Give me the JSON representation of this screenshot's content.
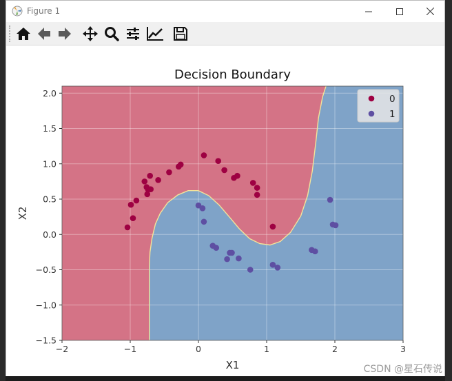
{
  "window": {
    "title": "Figure 1",
    "controls": [
      "minimize",
      "maximize",
      "close"
    ]
  },
  "toolbar": {
    "tools": [
      {
        "name": "home-icon",
        "label": "Home"
      },
      {
        "name": "back-arrow-icon",
        "label": "Back"
      },
      {
        "name": "forward-arrow-icon",
        "label": "Forward"
      },
      {
        "name": "pan-icon",
        "label": "Pan"
      },
      {
        "name": "zoom-icon",
        "label": "Zoom"
      },
      {
        "name": "subplots-icon",
        "label": "Configure subplots"
      },
      {
        "name": "edit-axis-icon",
        "label": "Edit axis"
      },
      {
        "name": "save-icon",
        "label": "Save"
      }
    ]
  },
  "background": {
    "watermark": "CSDN @星石传说"
  },
  "colors": {
    "class0_region": "#d47386",
    "class1_region": "#7fa3c8",
    "boundary": "#f2e39a",
    "class0_point": "#9e0142",
    "class1_point": "#5e4fa2",
    "grid": "#ffffff"
  },
  "chart_data": {
    "type": "scatter",
    "title": "Decision Boundary",
    "xlabel": "X1",
    "ylabel": "X2",
    "xlim": [
      -2.0,
      3.0
    ],
    "ylim": [
      -1.5,
      2.1
    ],
    "xticks": [
      "−2",
      "−1",
      "0",
      "1",
      "2",
      "3"
    ],
    "xtick_values": [
      -2,
      -1,
      0,
      1,
      2,
      3
    ],
    "yticks": [
      "−1.5",
      "−1.0",
      "−0.5",
      "0.0",
      "0.5",
      "1.0",
      "1.5",
      "2.0"
    ],
    "ytick_values": [
      -1.5,
      -1.0,
      -0.5,
      0.0,
      0.5,
      1.0,
      1.5,
      2.0
    ],
    "grid": true,
    "legend_position": "top-right",
    "series": [
      {
        "name": "0",
        "points": [
          [
            -1.04,
            0.1
          ],
          [
            -0.99,
            0.42
          ],
          [
            -0.96,
            0.23
          ],
          [
            -0.91,
            0.48
          ],
          [
            -0.79,
            0.75
          ],
          [
            -0.76,
            0.67
          ],
          [
            -0.75,
            0.57
          ],
          [
            -0.74,
            0.64
          ],
          [
            -0.71,
            0.83
          ],
          [
            -0.7,
            0.64
          ],
          [
            -0.59,
            0.77
          ],
          [
            -0.43,
            0.88
          ],
          [
            -0.29,
            0.96
          ],
          [
            -0.26,
            0.99
          ],
          [
            0.08,
            1.12
          ],
          [
            0.29,
            1.04
          ],
          [
            0.38,
            0.91
          ],
          [
            0.52,
            0.8
          ],
          [
            0.57,
            0.83
          ],
          [
            0.8,
            0.73
          ],
          [
            0.86,
            0.66
          ],
          [
            0.86,
            0.56
          ],
          [
            1.09,
            0.11
          ]
        ]
      },
      {
        "name": "1",
        "points": [
          [
            0.0,
            0.41
          ],
          [
            0.06,
            0.37
          ],
          [
            0.08,
            0.18
          ],
          [
            0.21,
            -0.16
          ],
          [
            0.26,
            -0.19
          ],
          [
            0.42,
            -0.35
          ],
          [
            0.46,
            -0.26
          ],
          [
            0.49,
            -0.26
          ],
          [
            0.59,
            -0.34
          ],
          [
            0.76,
            -0.5
          ],
          [
            1.09,
            -0.43
          ],
          [
            1.16,
            -0.47
          ],
          [
            1.66,
            -0.22
          ],
          [
            1.71,
            -0.24
          ],
          [
            1.93,
            0.49
          ],
          [
            1.97,
            0.14
          ],
          [
            2.01,
            0.13
          ]
        ]
      }
    ],
    "decision_boundary": [
      [
        -0.72,
        -1.5
      ],
      [
        -0.72,
        -0.45
      ],
      [
        -0.71,
        -0.25
      ],
      [
        -0.68,
        -0.05
      ],
      [
        -0.63,
        0.15
      ],
      [
        -0.56,
        0.3
      ],
      [
        -0.45,
        0.45
      ],
      [
        -0.3,
        0.56
      ],
      [
        -0.15,
        0.62
      ],
      [
        0.0,
        0.62
      ],
      [
        0.15,
        0.55
      ],
      [
        0.3,
        0.42
      ],
      [
        0.45,
        0.25
      ],
      [
        0.6,
        0.08
      ],
      [
        0.75,
        -0.06
      ],
      [
        0.9,
        -0.13
      ],
      [
        1.05,
        -0.15
      ],
      [
        1.2,
        -0.1
      ],
      [
        1.35,
        0.03
      ],
      [
        1.5,
        0.26
      ],
      [
        1.6,
        0.55
      ],
      [
        1.67,
        0.9
      ],
      [
        1.72,
        1.3
      ],
      [
        1.76,
        1.65
      ],
      [
        1.82,
        1.95
      ],
      [
        1.87,
        2.1
      ]
    ]
  }
}
